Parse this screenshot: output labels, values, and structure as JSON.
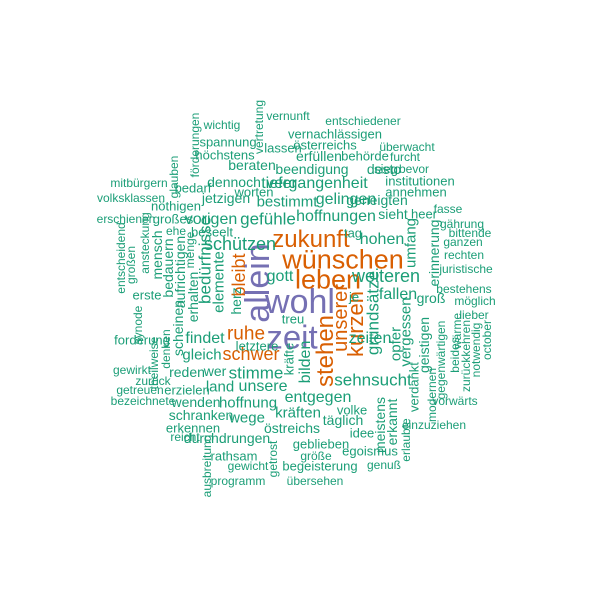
{
  "colors": {
    "purple": "#7570b3",
    "orange": "#d95f02",
    "green": "#1b9e77"
  },
  "words": [
    {
      "text": "wohl",
      "weight": 1.0,
      "color": "purple",
      "vertical": false
    },
    {
      "text": "allein",
      "weight": 1.0,
      "color": "purple",
      "vertical": true
    },
    {
      "text": "zeit",
      "weight": 0.95,
      "color": "purple",
      "vertical": false
    },
    {
      "text": "wünschen",
      "weight": 0.72,
      "color": "orange",
      "vertical": false
    },
    {
      "text": "leben",
      "weight": 0.72,
      "color": "orange",
      "vertical": false
    },
    {
      "text": "zukunft",
      "weight": 0.6,
      "color": "orange",
      "vertical": false
    },
    {
      "text": "stehen",
      "weight": 0.58,
      "color": "orange",
      "vertical": true
    },
    {
      "text": "kurzen",
      "weight": 0.5,
      "color": "orange",
      "vertical": true
    },
    {
      "text": "unserer",
      "weight": 0.45,
      "color": "orange",
      "vertical": true
    },
    {
      "text": "ruhe",
      "weight": 0.4,
      "color": "orange",
      "vertical": false
    },
    {
      "text": "schwer",
      "weight": 0.36,
      "color": "orange",
      "vertical": false
    },
    {
      "text": "bleibt",
      "weight": 0.34,
      "color": "orange",
      "vertical": true
    },
    {
      "text": "schützen",
      "weight": 0.34,
      "color": "green",
      "vertical": false
    },
    {
      "text": "weiteren",
      "weight": 0.34,
      "color": "green",
      "vertical": false
    },
    {
      "text": "bedürfnisse",
      "weight": 0.33,
      "color": "green",
      "vertical": true
    },
    {
      "text": "gefühle",
      "weight": 0.3,
      "color": "green",
      "vertical": false
    },
    {
      "text": "stimme",
      "weight": 0.3,
      "color": "green",
      "vertical": false
    },
    {
      "text": "sehnsucht",
      "weight": 0.3,
      "color": "green",
      "vertical": false
    },
    {
      "text": "hoffnungen",
      "weight": 0.28,
      "color": "green",
      "vertical": false
    },
    {
      "text": "vergangenheit",
      "weight": 0.28,
      "color": "green",
      "vertical": false
    },
    {
      "text": "gelingen",
      "weight": 0.28,
      "color": "green",
      "vertical": false
    },
    {
      "text": "hohen",
      "weight": 0.28,
      "color": "green",
      "vertical": false
    },
    {
      "text": "fallen",
      "weight": 0.28,
      "color": "green",
      "vertical": false
    },
    {
      "text": "zeiten",
      "weight": 0.28,
      "color": "green",
      "vertical": false
    },
    {
      "text": "grundsätze",
      "weight": 0.3,
      "color": "green",
      "vertical": true
    },
    {
      "text": "vorigen",
      "weight": 0.26,
      "color": "green",
      "vertical": false
    },
    {
      "text": "tiefer",
      "weight": 0.26,
      "color": "green",
      "vertical": false
    },
    {
      "text": "findet",
      "weight": 0.26,
      "color": "green",
      "vertical": false
    },
    {
      "text": "gott",
      "weight": 0.26,
      "color": "green",
      "vertical": false
    },
    {
      "text": "unsere",
      "weight": 0.26,
      "color": "green",
      "vertical": false
    },
    {
      "text": "entgegen",
      "weight": 0.26,
      "color": "green",
      "vertical": false
    },
    {
      "text": "bilden",
      "weight": 0.26,
      "color": "green",
      "vertical": true
    },
    {
      "text": "elemente",
      "weight": 0.24,
      "color": "green",
      "vertical": true
    },
    {
      "text": "opfer",
      "weight": 0.24,
      "color": "green",
      "vertical": true
    },
    {
      "text": "vergessen",
      "weight": 0.24,
      "color": "green",
      "vertical": true
    },
    {
      "text": "umfang",
      "weight": 0.22,
      "color": "green",
      "vertical": true
    },
    {
      "text": "hoffnung",
      "weight": 0.24,
      "color": "green",
      "vertical": false
    },
    {
      "text": "kräften",
      "weight": 0.24,
      "color": "green",
      "vertical": false
    },
    {
      "text": "gleich",
      "weight": 0.22,
      "color": "green",
      "vertical": false
    },
    {
      "text": "land",
      "weight": 0.22,
      "color": "green",
      "vertical": false
    },
    {
      "text": "wege",
      "weight": 0.22,
      "color": "green",
      "vertical": false
    },
    {
      "text": "schranken",
      "weight": 0.2,
      "color": "green",
      "vertical": false
    },
    {
      "text": "wenden",
      "weight": 0.2,
      "color": "green",
      "vertical": false
    },
    {
      "text": "reden",
      "weight": 0.2,
      "color": "green",
      "vertical": false
    },
    {
      "text": "wer",
      "weight": 0.2,
      "color": "green",
      "vertical": false
    },
    {
      "text": "durchdrungen",
      "weight": 0.2,
      "color": "green",
      "vertical": false
    },
    {
      "text": "östreichs",
      "weight": 0.2,
      "color": "green",
      "vertical": false
    },
    {
      "text": "täglich",
      "weight": 0.2,
      "color": "green",
      "vertical": false
    },
    {
      "text": "bestimmt",
      "weight": 0.22,
      "color": "green",
      "vertical": false
    },
    {
      "text": "jetzigen",
      "weight": 0.2,
      "color": "green",
      "vertical": false
    },
    {
      "text": "dennoch",
      "weight": 0.2,
      "color": "green",
      "vertical": false
    },
    {
      "text": "beendigung",
      "weight": 0.2,
      "color": "green",
      "vertical": false
    },
    {
      "text": "geneigten",
      "weight": 0.2,
      "color": "green",
      "vertical": false
    },
    {
      "text": "sieht",
      "weight": 0.2,
      "color": "green",
      "vertical": false
    },
    {
      "text": "erhalten",
      "weight": 0.2,
      "color": "green",
      "vertical": true
    },
    {
      "text": "aufrichtigen",
      "weight": 0.2,
      "color": "green",
      "vertical": true
    },
    {
      "text": "scheinen",
      "weight": 0.2,
      "color": "green",
      "vertical": true
    },
    {
      "text": "bedauern",
      "weight": 0.2,
      "color": "green",
      "vertical": true
    },
    {
      "text": "mensch",
      "weight": 0.2,
      "color": "green",
      "vertical": true
    },
    {
      "text": "herz",
      "weight": 0.18,
      "color": "green",
      "vertical": true
    },
    {
      "text": "erinnerung",
      "weight": 0.2,
      "color": "green",
      "vertical": true
    },
    {
      "text": "geistigen",
      "weight": 0.18,
      "color": "green",
      "vertical": true
    },
    {
      "text": "groß",
      "weight": 0.18,
      "color": "green",
      "vertical": false
    },
    {
      "text": "meistens",
      "weight": 0.18,
      "color": "green",
      "vertical": true
    },
    {
      "text": "erkannt",
      "weight": 0.18,
      "color": "green",
      "vertical": true
    },
    {
      "text": "beraten",
      "weight": 0.18,
      "color": "green",
      "vertical": false
    },
    {
      "text": "erfüllen",
      "weight": 0.18,
      "color": "green",
      "vertical": false
    },
    {
      "text": "desto",
      "weight": 0.18,
      "color": "green",
      "vertical": false
    },
    {
      "text": "erste",
      "weight": 0.16,
      "color": "green",
      "vertical": false
    },
    {
      "text": "forderung",
      "weight": 0.16,
      "color": "green",
      "vertical": false
    },
    {
      "text": "erzielen",
      "weight": 0.16,
      "color": "green",
      "vertical": false
    },
    {
      "text": "erkennen",
      "weight": 0.16,
      "color": "green",
      "vertical": false
    },
    {
      "text": "rathsam",
      "weight": 0.16,
      "color": "green",
      "vertical": false
    },
    {
      "text": "begeisterung",
      "weight": 0.16,
      "color": "green",
      "vertical": false
    },
    {
      "text": "egoismus",
      "weight": 0.16,
      "color": "green",
      "vertical": false
    },
    {
      "text": "geblieben",
      "weight": 0.16,
      "color": "green",
      "vertical": false
    },
    {
      "text": "idee",
      "weight": 0.16,
      "color": "green",
      "vertical": false
    },
    {
      "text": "volke",
      "weight": 0.14,
      "color": "green",
      "vertical": false
    },
    {
      "text": "treu",
      "weight": 0.14,
      "color": "green",
      "vertical": false
    },
    {
      "text": "letztere",
      "weight": 0.14,
      "color": "green",
      "vertical": false
    },
    {
      "text": "kräfte",
      "weight": 0.14,
      "color": "green",
      "vertical": true
    },
    {
      "text": "tag",
      "weight": 0.14,
      "color": "green",
      "vertical": false
    },
    {
      "text": "je",
      "weight": 0.14,
      "color": "green",
      "vertical": false
    },
    {
      "text": "worten",
      "weight": 0.14,
      "color": "green",
      "vertical": false
    },
    {
      "text": "großes",
      "weight": 0.14,
      "color": "green",
      "vertical": false
    },
    {
      "text": "beseelt",
      "weight": 0.14,
      "color": "green",
      "vertical": false
    },
    {
      "text": "heer",
      "weight": 0.14,
      "color": "green",
      "vertical": false
    },
    {
      "text": "bedarf",
      "weight": 0.14,
      "color": "green",
      "vertical": false
    },
    {
      "text": "nöthigen",
      "weight": 0.14,
      "color": "green",
      "vertical": false
    },
    {
      "text": "höchstens",
      "weight": 0.14,
      "color": "green",
      "vertical": false
    },
    {
      "text": "spannung",
      "weight": 0.14,
      "color": "green",
      "vertical": false
    },
    {
      "text": "lassen",
      "weight": 0.14,
      "color": "green",
      "vertical": false
    },
    {
      "text": "vernachlässigen",
      "weight": 0.14,
      "color": "green",
      "vertical": false
    },
    {
      "text": "österreichs",
      "weight": 0.14,
      "color": "green",
      "vertical": false
    },
    {
      "text": "behörde",
      "weight": 0.14,
      "color": "green",
      "vertical": false
    },
    {
      "text": "institutionen",
      "weight": 0.14,
      "color": "green",
      "vertical": false
    },
    {
      "text": "annehmen",
      "weight": 0.14,
      "color": "green",
      "vertical": false
    },
    {
      "text": "sieg",
      "weight": 0.14,
      "color": "green",
      "vertical": false
    },
    {
      "text": "bevor",
      "weight": 0.12,
      "color": "green",
      "vertical": false
    },
    {
      "text": "fasse",
      "weight": 0.12,
      "color": "green",
      "vertical": false
    },
    {
      "text": "gährung",
      "weight": 0.12,
      "color": "green",
      "vertical": false
    },
    {
      "text": "bittende",
      "weight": 0.12,
      "color": "green",
      "vertical": false
    },
    {
      "text": "ganzen",
      "weight": 0.12,
      "color": "green",
      "vertical": false
    },
    {
      "text": "rechten",
      "weight": 0.12,
      "color": "green",
      "vertical": false
    },
    {
      "text": "juristische",
      "weight": 0.12,
      "color": "green",
      "vertical": false
    },
    {
      "text": "bestehens",
      "weight": 0.12,
      "color": "green",
      "vertical": false
    },
    {
      "text": "möglich",
      "weight": 0.12,
      "color": "green",
      "vertical": false
    },
    {
      "text": "lieber",
      "weight": 0.12,
      "color": "green",
      "vertical": false
    },
    {
      "text": "wärme",
      "weight": 0.12,
      "color": "green",
      "vertical": true
    },
    {
      "text": "notwendig",
      "weight": 0.1,
      "color": "green",
      "vertical": true
    },
    {
      "text": "october",
      "weight": 0.1,
      "color": "green",
      "vertical": true
    },
    {
      "text": "zurückkehren",
      "weight": 0.12,
      "color": "green",
      "vertical": true
    },
    {
      "text": "beides",
      "weight": 0.12,
      "color": "green",
      "vertical": true
    },
    {
      "text": "gegenwärtigen",
      "weight": 0.12,
      "color": "green",
      "vertical": true
    },
    {
      "text": "modernen",
      "weight": 0.12,
      "color": "green",
      "vertical": true
    },
    {
      "text": "vorwärts",
      "weight": 0.12,
      "color": "green",
      "vertical": false
    },
    {
      "text": "verdankt",
      "weight": 0.14,
      "color": "green",
      "vertical": true
    },
    {
      "text": "einzuziehen",
      "weight": 0.12,
      "color": "green",
      "vertical": false
    },
    {
      "text": "erlaubte",
      "weight": 0.12,
      "color": "green",
      "vertical": true
    },
    {
      "text": "genuß",
      "weight": 0.12,
      "color": "green",
      "vertical": false
    },
    {
      "text": "übersehen",
      "weight": 0.12,
      "color": "green",
      "vertical": false
    },
    {
      "text": "größe",
      "weight": 0.12,
      "color": "green",
      "vertical": false
    },
    {
      "text": "getrost",
      "weight": 0.12,
      "color": "green",
      "vertical": true
    },
    {
      "text": "gewicht",
      "weight": 0.12,
      "color": "green",
      "vertical": false
    },
    {
      "text": "programm",
      "weight": 0.12,
      "color": "green",
      "vertical": false
    },
    {
      "text": "ausbreitung",
      "weight": 0.1,
      "color": "green",
      "vertical": true
    },
    {
      "text": "reicht",
      "weight": 0.12,
      "color": "green",
      "vertical": false
    },
    {
      "text": "bezeichnete",
      "weight": 0.12,
      "color": "green",
      "vertical": false
    },
    {
      "text": "getreuen",
      "weight": 0.12,
      "color": "green",
      "vertical": false
    },
    {
      "text": "gewirkt",
      "weight": 0.12,
      "color": "green",
      "vertical": false
    },
    {
      "text": "zurück",
      "weight": 0.1,
      "color": "green",
      "vertical": false
    },
    {
      "text": "synode",
      "weight": 0.1,
      "color": "green",
      "vertical": true
    },
    {
      "text": "theilweise",
      "weight": 0.1,
      "color": "green",
      "vertical": true
    },
    {
      "text": "denken",
      "weight": 0.1,
      "color": "green",
      "vertical": true
    },
    {
      "text": "ansteckung",
      "weight": 0.12,
      "color": "green",
      "vertical": true
    },
    {
      "text": "großen",
      "weight": 0.12,
      "color": "green",
      "vertical": true
    },
    {
      "text": "entscheidend",
      "weight": 0.1,
      "color": "green",
      "vertical": true
    },
    {
      "text": "erschienen",
      "weight": 0.12,
      "color": "green",
      "vertical": false
    },
    {
      "text": "volksklassen",
      "weight": 0.1,
      "color": "green",
      "vertical": false
    },
    {
      "text": "mitbürgern",
      "weight": 0.12,
      "color": "green",
      "vertical": false
    },
    {
      "text": "glauben",
      "weight": 0.12,
      "color": "green",
      "vertical": true
    },
    {
      "text": "förderungen",
      "weight": 0.1,
      "color": "green",
      "vertical": true
    },
    {
      "text": "wichtig",
      "weight": 0.12,
      "color": "green",
      "vertical": false
    },
    {
      "text": "vertretung",
      "weight": 0.1,
      "color": "green",
      "vertical": true
    },
    {
      "text": "vernunft",
      "weight": 0.12,
      "color": "green",
      "vertical": false
    },
    {
      "text": "entschiedener",
      "weight": 0.12,
      "color": "green",
      "vertical": false
    },
    {
      "text": "überwacht",
      "weight": 0.12,
      "color": "green",
      "vertical": false
    },
    {
      "text": "furcht",
      "weight": 0.12,
      "color": "green",
      "vertical": false
    },
    {
      "text": "menge",
      "weight": 0.1,
      "color": "green",
      "vertical": true
    },
    {
      "text": "ehe",
      "weight": 0.1,
      "color": "green",
      "vertical": false
    }
  ]
}
